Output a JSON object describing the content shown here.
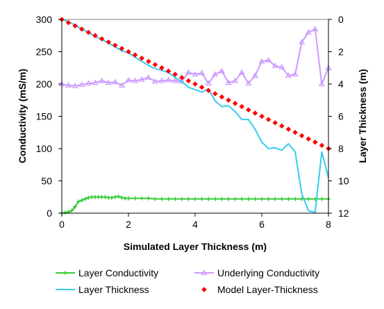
{
  "chart_data": {
    "type": "line",
    "title": "",
    "xlabel": "Simulated Layer Thickness (m)",
    "ylabel_left": "Conductivity (mS/m)",
    "ylabel_right": "Layer Thickness (m)",
    "xlim": [
      0,
      8
    ],
    "ylim_left": [
      0,
      300
    ],
    "ylim_right": [
      0,
      12
    ],
    "right_axis_inverted": true,
    "x_ticks": [
      "0",
      "2",
      "4",
      "6",
      "8"
    ],
    "y_left_ticks": [
      "0",
      "50",
      "100",
      "150",
      "200",
      "250",
      "300"
    ],
    "y_right_ticks": [
      "0",
      "2",
      "4",
      "6",
      "8",
      "10",
      "12"
    ],
    "grid": false,
    "legend_position": "bottom",
    "series": [
      {
        "name": "Layer Conductivity",
        "axis": "left",
        "color": "#33cc33",
        "marker": "plus",
        "x": [
          0,
          0.1,
          0.2,
          0.3,
          0.4,
          0.5,
          0.6,
          0.7,
          0.8,
          0.9,
          1.0,
          1.1,
          1.2,
          1.3,
          1.4,
          1.5,
          1.6,
          1.7,
          1.8,
          1.9,
          2.0,
          2.2,
          2.4,
          2.6,
          2.8,
          3.0,
          3.2,
          3.4,
          3.6,
          3.8,
          4.0,
          4.2,
          4.4,
          4.6,
          4.8,
          5.0,
          5.2,
          5.4,
          5.6,
          5.8,
          6.0,
          6.2,
          6.4,
          6.6,
          6.8,
          7.0,
          7.2,
          7.4,
          7.6,
          7.8,
          8.0
        ],
        "values": [
          0,
          1,
          2,
          4,
          10,
          18,
          20,
          22,
          24,
          25,
          25,
          25,
          25,
          25,
          24,
          24,
          25,
          26,
          24,
          23,
          23,
          23,
          23,
          23,
          22,
          22,
          22,
          22,
          22,
          22,
          22,
          22,
          22,
          22,
          22,
          22,
          22,
          22,
          22,
          22,
          22,
          22,
          22,
          22,
          22,
          22,
          22,
          22,
          22,
          22,
          22
        ]
      },
      {
        "name": "Underlying Conductivity",
        "axis": "left",
        "color": "#cc99ff",
        "marker": "triangle",
        "x": [
          0,
          0.2,
          0.4,
          0.6,
          0.8,
          1.0,
          1.2,
          1.4,
          1.6,
          1.8,
          2.0,
          2.2,
          2.4,
          2.6,
          2.8,
          3.0,
          3.2,
          3.4,
          3.6,
          3.8,
          4.0,
          4.2,
          4.4,
          4.6,
          4.8,
          5.0,
          5.2,
          5.4,
          5.6,
          5.8,
          6.0,
          6.2,
          6.4,
          6.6,
          6.8,
          7.0,
          7.2,
          7.4,
          7.6,
          7.8,
          8.0
        ],
        "values": [
          200,
          198,
          197,
          199,
          201,
          202,
          205,
          202,
          203,
          198,
          206,
          205,
          207,
          210,
          204,
          205,
          206,
          205,
          204,
          218,
          215,
          217,
          201,
          215,
          220,
          202,
          205,
          218,
          201,
          213,
          235,
          237,
          228,
          226,
          213,
          215,
          265,
          280,
          285,
          200,
          225
        ]
      },
      {
        "name": "Layer Thickness",
        "axis": "right",
        "color": "#33ccee",
        "marker": "none",
        "x": [
          0,
          0.2,
          0.4,
          0.6,
          0.8,
          1.0,
          1.2,
          1.4,
          1.6,
          1.8,
          2.0,
          2.2,
          2.4,
          2.6,
          2.8,
          3.0,
          3.2,
          3.4,
          3.6,
          3.8,
          4.0,
          4.2,
          4.4,
          4.6,
          4.8,
          5.0,
          5.2,
          5.4,
          5.6,
          5.8,
          6.0,
          6.2,
          6.4,
          6.6,
          6.8,
          7.0,
          7.2,
          7.4,
          7.6,
          7.8,
          8.0
        ],
        "values": [
          0,
          0.15,
          0.35,
          0.6,
          0.8,
          1.05,
          1.25,
          1.45,
          1.7,
          1.95,
          2.05,
          2.35,
          2.6,
          2.85,
          3.05,
          3.15,
          3.3,
          3.6,
          3.85,
          4.2,
          4.35,
          4.5,
          4.3,
          5.05,
          5.4,
          5.35,
          5.7,
          6.2,
          6.2,
          6.8,
          7.6,
          8.0,
          7.95,
          8.1,
          7.7,
          8.2,
          10.8,
          11.85,
          11.95,
          8.2,
          9.8
        ]
      },
      {
        "name": "Model Layer-Thickness",
        "axis": "right",
        "color": "#ff0000",
        "marker": "diamond",
        "x": [
          0,
          0.2,
          0.4,
          0.6,
          0.8,
          1.0,
          1.2,
          1.4,
          1.6,
          1.8,
          2.0,
          2.2,
          2.4,
          2.6,
          2.8,
          3.0,
          3.2,
          3.4,
          3.6,
          3.8,
          4.0,
          4.2,
          4.4,
          4.6,
          4.8,
          5.0,
          5.2,
          5.4,
          5.6,
          5.8,
          6.0,
          6.2,
          6.4,
          6.6,
          6.8,
          7.0,
          7.2,
          7.4,
          7.6,
          7.8,
          8.0
        ],
        "values": [
          0,
          0.2,
          0.4,
          0.6,
          0.8,
          1.0,
          1.2,
          1.4,
          1.6,
          1.8,
          2.0,
          2.2,
          2.4,
          2.6,
          2.8,
          3.0,
          3.2,
          3.4,
          3.6,
          3.8,
          4.0,
          4.2,
          4.4,
          4.6,
          4.8,
          5.0,
          5.2,
          5.4,
          5.6,
          5.8,
          6.0,
          6.2,
          6.4,
          6.6,
          6.8,
          7.0,
          7.2,
          7.4,
          7.6,
          7.8,
          8.0
        ]
      }
    ]
  }
}
